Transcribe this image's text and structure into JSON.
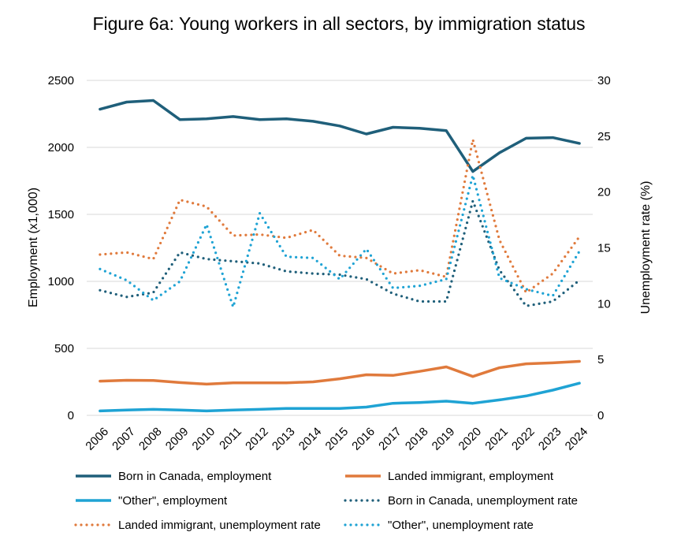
{
  "chart_data": {
    "type": "line",
    "title": "Figure 6a: Young workers in all sectors, by immigration status",
    "ylabel": "Employment (x1,000)",
    "y2label": "Unemployment rate (%)",
    "xlabel": "",
    "categories": [
      "2006",
      "2007",
      "2008",
      "2009",
      "2010",
      "2011",
      "2012",
      "2013",
      "2014",
      "2015",
      "2016",
      "2017",
      "2018",
      "2019",
      "2020",
      "2021",
      "2022",
      "2023",
      "2024"
    ],
    "ylim": [
      0,
      2500
    ],
    "y2lim": [
      0,
      30
    ],
    "yticks": [
      "0",
      "500",
      "1000",
      "1500",
      "2000",
      "2500"
    ],
    "y2ticks": [
      "0",
      "5",
      "10",
      "15",
      "20",
      "25",
      "30"
    ],
    "grid": true,
    "legend_position": "bottom",
    "series": [
      {
        "name": "Born in Canada, employment",
        "axis": "left",
        "style": "solid",
        "color": "#1f5f7a",
        "values": [
          2285,
          2338,
          2350,
          2207,
          2213,
          2230,
          2207,
          2213,
          2195,
          2160,
          2100,
          2150,
          2143,
          2125,
          1820,
          1960,
          2068,
          2073,
          2030
        ]
      },
      {
        "name": "Landed immigrant, employment",
        "axis": "left",
        "style": "solid",
        "color": "#e07a3c",
        "values": [
          255,
          262,
          260,
          245,
          233,
          243,
          243,
          243,
          250,
          273,
          303,
          298,
          328,
          362,
          290,
          355,
          385,
          392,
          403
        ]
      },
      {
        "name": "\"Other\", employment",
        "axis": "left",
        "style": "solid",
        "color": "#1fa3d4",
        "values": [
          33,
          40,
          45,
          40,
          33,
          40,
          45,
          52,
          52,
          52,
          62,
          90,
          96,
          106,
          90,
          115,
          145,
          188,
          240
        ]
      },
      {
        "name": "Born in Canada, unemployment rate",
        "axis": "right",
        "style": "dotted",
        "color": "#1f5f7a",
        "values": [
          11.2,
          10.6,
          11.0,
          14.6,
          14.0,
          13.8,
          13.6,
          12.9,
          12.7,
          12.6,
          12.2,
          10.9,
          10.2,
          10.2,
          19.2,
          13.0,
          9.8,
          10.2,
          12.1
        ]
      },
      {
        "name": "Landed immigrant, unemployment rate",
        "axis": "right",
        "style": "dotted",
        "color": "#e07a3c",
        "values": [
          14.4,
          14.6,
          14.0,
          19.3,
          18.7,
          16.1,
          16.2,
          15.9,
          16.6,
          14.3,
          14.1,
          12.7,
          13.0,
          12.4,
          24.7,
          15.7,
          11.0,
          12.7,
          16.0
        ]
      },
      {
        "name": "\"Other\", unemployment rate",
        "axis": "right",
        "style": "dotted",
        "color": "#1fa3d4",
        "values": [
          13.1,
          12.1,
          10.3,
          12.0,
          17.1,
          9.7,
          18.1,
          14.2,
          14.1,
          12.2,
          14.9,
          11.4,
          11.6,
          12.2,
          21.5,
          12.3,
          11.3,
          10.7,
          14.7
        ]
      }
    ]
  }
}
